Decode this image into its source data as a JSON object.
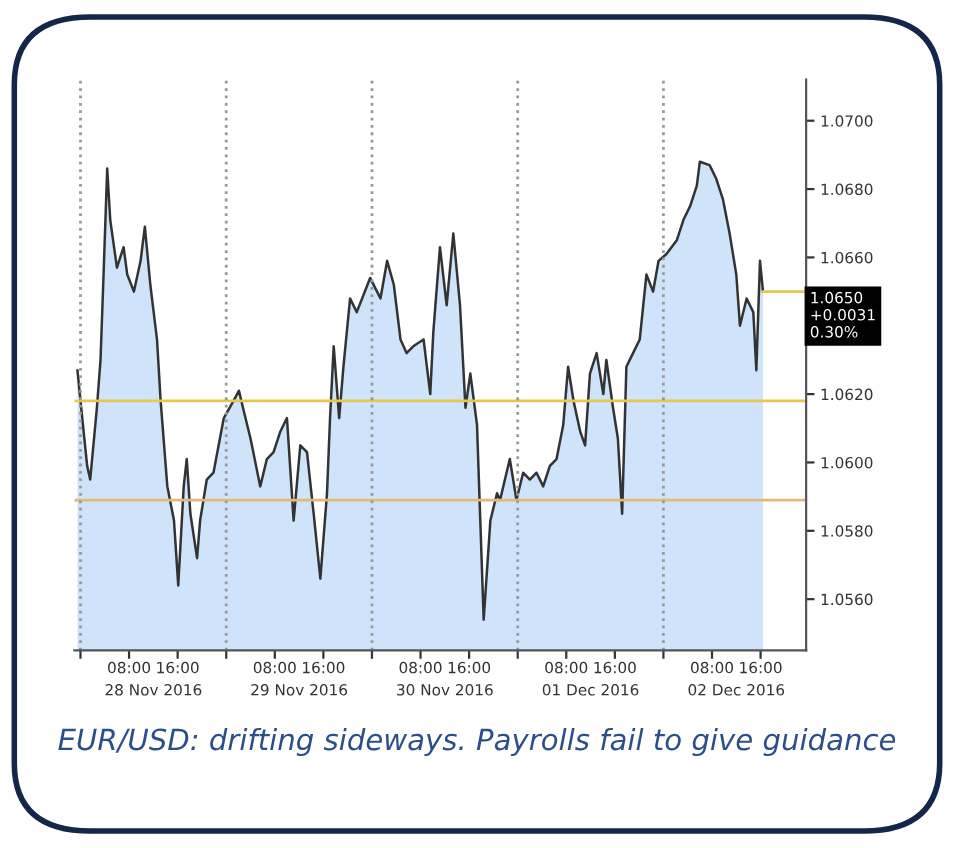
{
  "chart_data": {
    "type": "area",
    "x": [
      "2016-11-27T23:30",
      "2016-11-28T00:00",
      "2016-11-28T01:06",
      "2016-11-28T01:36",
      "2016-11-28T02:42",
      "2016-11-28T03:18",
      "2016-11-28T03:48",
      "2016-11-28T04:24",
      "2016-11-28T04:54",
      "2016-11-28T06:00",
      "2016-11-28T07:06",
      "2016-11-28T07:42",
      "2016-11-28T08:48",
      "2016-11-28T09:54",
      "2016-11-28T10:36",
      "2016-11-28T11:30",
      "2016-11-28T12:36",
      "2016-11-28T13:12",
      "2016-11-28T14:18",
      "2016-11-28T15:24",
      "2016-11-28T16:06",
      "2016-11-28T17:00",
      "2016-11-28T17:30",
      "2016-11-28T18:06",
      "2016-11-28T19:12",
      "2016-11-28T19:42",
      "2016-11-28T20:48",
      "2016-11-28T21:54",
      "2016-11-28T23:36",
      "2016-11-29T01:12",
      "2016-11-29T02:06",
      "2016-11-29T02:54",
      "2016-11-29T04:00",
      "2016-11-29T05:36",
      "2016-11-29T06:42",
      "2016-11-29T07:48",
      "2016-11-29T08:54",
      "2016-11-29T10:00",
      "2016-11-29T11:06",
      "2016-11-29T12:12",
      "2016-11-29T13:18",
      "2016-11-29T14:24",
      "2016-11-29T15:30",
      "2016-11-29T16:36",
      "2016-11-29T17:06",
      "2016-11-29T17:42",
      "2016-11-29T18:36",
      "2016-11-29T19:18",
      "2016-11-29T20:24",
      "2016-11-29T21:30",
      "2016-11-29T23:42",
      "2016-11-30T01:24",
      "2016-11-30T02:30",
      "2016-11-30T03:36",
      "2016-11-30T04:42",
      "2016-11-30T05:42",
      "2016-11-30T06:48",
      "2016-11-30T08:30",
      "2016-11-30T09:36",
      "2016-11-30T10:06",
      "2016-11-30T11:12",
      "2016-11-30T12:18",
      "2016-11-30T13:24",
      "2016-11-30T14:30",
      "2016-11-30T15:24",
      "2016-11-30T16:12",
      "2016-11-30T17:18",
      "2016-11-30T17:48",
      "2016-11-30T18:24",
      "2016-11-30T19:30",
      "2016-11-30T20:36",
      "2016-11-30T21:06",
      "2016-11-30T22:42",
      "2016-11-30T23:48",
      "2016-12-01T00:54",
      "2016-12-01T02:00",
      "2016-12-01T03:06",
      "2016-12-01T04:12",
      "2016-12-01T05:18",
      "2016-12-01T06:24",
      "2016-12-01T07:30",
      "2016-12-01T08:18",
      "2016-12-01T09:12",
      "2016-12-01T10:18",
      "2016-12-01T11:06",
      "2016-12-01T11:54",
      "2016-12-01T13:00",
      "2016-12-01T14:06",
      "2016-12-01T14:36",
      "2016-12-01T15:42",
      "2016-12-01T16:30",
      "2016-12-01T17:12",
      "2016-12-01T17:54",
      "2016-12-01T19:00",
      "2016-12-01T20:06",
      "2016-12-01T21:12",
      "2016-12-01T22:18",
      "2016-12-01T23:12",
      "2016-12-02T00:30",
      "2016-12-02T02:12",
      "2016-12-02T03:18",
      "2016-12-02T04:24",
      "2016-12-02T05:30",
      "2016-12-02T06:00",
      "2016-12-02T07:36",
      "2016-12-02T08:42",
      "2016-12-02T09:48",
      "2016-12-02T10:54",
      "2016-12-02T12:00",
      "2016-12-02T12:36",
      "2016-12-02T13:42",
      "2016-12-02T14:48",
      "2016-12-02T15:18",
      "2016-12-02T15:54",
      "2016-12-02T16:24"
    ],
    "series": [
      {
        "color": "#cfe4fa",
        "values": [
          1.0627,
          1.0618,
          1.0599,
          1.0595,
          1.0616,
          1.063,
          1.0655,
          1.0686,
          1.0671,
          1.0657,
          1.0663,
          1.0655,
          1.065,
          1.0659,
          1.0669,
          1.0652,
          1.0636,
          1.0618,
          1.0593,
          1.0583,
          1.0564,
          1.0593,
          1.0601,
          1.0585,
          1.0572,
          1.0583,
          1.0595,
          1.0597,
          1.0613,
          1.0618,
          1.0621,
          1.0615,
          1.0607,
          1.0593,
          1.0601,
          1.0603,
          1.0609,
          1.0613,
          1.0583,
          1.0605,
          1.0603,
          1.0585,
          1.0566,
          1.0591,
          1.0613,
          1.0634,
          1.0613,
          1.0628,
          1.0648,
          1.0644,
          1.0654,
          1.0648,
          1.0659,
          1.0652,
          1.0636,
          1.0632,
          1.0634,
          1.0636,
          1.062,
          1.0638,
          1.0663,
          1.0646,
          1.0667,
          1.0646,
          1.0616,
          1.0626,
          1.0611,
          1.0585,
          1.0554,
          1.0583,
          1.0591,
          1.0589,
          1.0601,
          1.0589,
          1.0597,
          1.0595,
          1.0597,
          1.0593,
          1.0599,
          1.0601,
          1.0611,
          1.0628,
          1.0618,
          1.0609,
          1.0605,
          1.0626,
          1.0632,
          1.062,
          1.063,
          1.0616,
          1.0607,
          1.0585,
          1.0628,
          1.0632,
          1.0636,
          1.0655,
          1.065,
          1.0659,
          1.0661,
          1.0665,
          1.0671,
          1.0675,
          1.0681,
          1.0688,
          1.0687,
          1.0683,
          1.0677,
          1.0667,
          1.0655,
          1.064,
          1.0648,
          1.0644,
          1.0627,
          1.0659,
          1.065
        ]
      }
    ],
    "xlim": [
      "2016-11-27T23:00",
      "2016-12-02T23:30"
    ],
    "xticks": [
      {
        "value": "2016-11-28T00:00",
        "label": null
      },
      {
        "value": "2016-11-28T08:00",
        "label": "08:00"
      },
      {
        "value": "2016-11-28T16:00",
        "label": "16:00"
      },
      {
        "value": "2016-11-29T00:00",
        "label": null
      },
      {
        "value": "2016-11-29T08:00",
        "label": "08:00"
      },
      {
        "value": "2016-11-29T16:00",
        "label": "16:00"
      },
      {
        "value": "2016-11-30T00:00",
        "label": null
      },
      {
        "value": "2016-11-30T08:00",
        "label": "08:00"
      },
      {
        "value": "2016-11-30T16:00",
        "label": "16:00"
      },
      {
        "value": "2016-12-01T00:00",
        "label": null
      },
      {
        "value": "2016-12-01T08:00",
        "label": "08:00"
      },
      {
        "value": "2016-12-01T16:00",
        "label": "16:00"
      },
      {
        "value": "2016-12-02T00:00",
        "label": null
      },
      {
        "value": "2016-12-02T08:00",
        "label": "08:00"
      },
      {
        "value": "2016-12-02T16:00",
        "label": "16:00"
      }
    ],
    "x2lim": [
      "2016-11-27T23:00",
      "2016-12-02T23:30"
    ],
    "x2ticks": [
      {
        "value": "2016-11-28T12:00",
        "label": "28 Nov 2016"
      },
      {
        "value": "2016-11-29T12:00",
        "label": "29 Nov 2016"
      },
      {
        "value": "2016-11-30T12:00",
        "label": "30 Nov 2016"
      },
      {
        "value": "2016-12-01T12:00",
        "label": "01 Dec 2016"
      },
      {
        "value": "2016-12-02T12:00",
        "label": "02 Dec 2016"
      }
    ],
    "ylim": [
      1.0545,
      1.0712
    ],
    "yticks": [
      {
        "value": 1.056,
        "label": "1.0560"
      },
      {
        "value": 1.058,
        "label": "1.0580"
      },
      {
        "value": 1.06,
        "label": "1.0600"
      },
      {
        "value": 1.062,
        "label": "1.0620"
      },
      {
        "value": 1.064,
        "label": null
      },
      {
        "value": 1.066,
        "label": "1.0660"
      },
      {
        "value": 1.068,
        "label": "1.0680"
      },
      {
        "value": 1.07,
        "label": "1.0700"
      }
    ],
    "ref_lines": [
      {
        "axis": "y",
        "value": 1.0618,
        "label": null,
        "color": "#e8c84a",
        "line_style": "solid"
      },
      {
        "axis": "y",
        "value": 1.0589,
        "label": null,
        "color": "#e3b878",
        "line_style": "solid"
      },
      {
        "axis": "x",
        "value": "2016-11-28T00:00",
        "label": null,
        "color": "#999999",
        "line_style": "dotted"
      },
      {
        "axis": "x",
        "value": "2016-11-29T00:00",
        "label": null,
        "color": "#999999",
        "line_style": "dotted"
      },
      {
        "axis": "x",
        "value": "2016-11-30T00:00",
        "label": null,
        "color": "#999999",
        "line_style": "dotted"
      },
      {
        "axis": "x",
        "value": "2016-12-01T00:00",
        "label": null,
        "color": "#999999",
        "line_style": "dotted"
      },
      {
        "axis": "x",
        "value": "2016-12-02T00:00",
        "label": null,
        "color": "#999999",
        "line_style": "dotted"
      }
    ],
    "annotations": [
      {
        "text": "1.0650\n+0.0031\n0.30%",
        "x": "2016-12-02T16:24",
        "y": 1.065
      },
      "EUR/USD: drifting sideways. Payrolls fail to give guidance"
    ],
    "grid": false,
    "line_style": "solid",
    "marker": "none"
  }
}
